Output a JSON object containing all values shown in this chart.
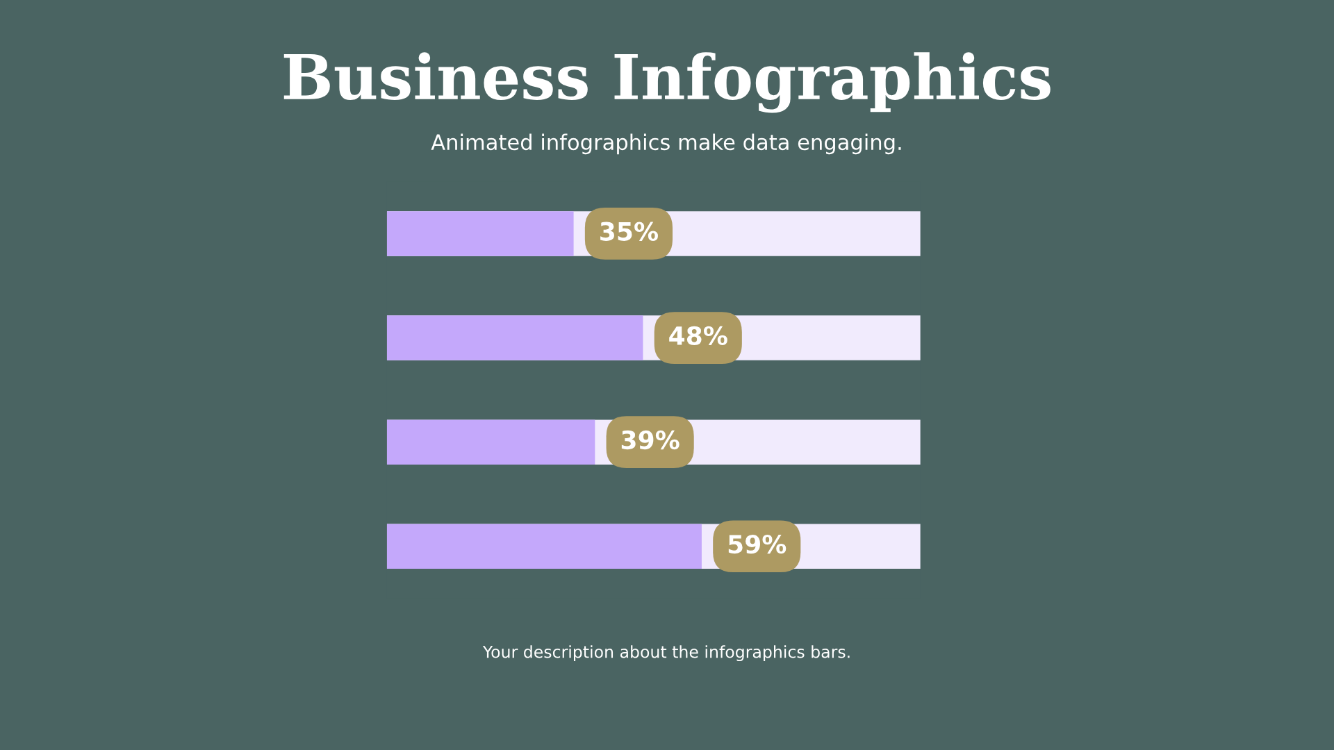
{
  "chart_data": {
    "type": "bar",
    "orientation": "horizontal",
    "title": "Business Infographics",
    "subtitle": "Animated infographics make data engaging.",
    "categories": [
      null,
      null,
      null,
      null
    ],
    "values": [
      35,
      48,
      39,
      59
    ],
    "value_labels": [
      "35%",
      "48%",
      "39%",
      "59%"
    ],
    "color": "#c4a8fb",
    "xlim": [
      0,
      100
    ],
    "grid": false,
    "legend": false,
    "annotations": [
      "Your description about the infographics bars."
    ]
  }
}
